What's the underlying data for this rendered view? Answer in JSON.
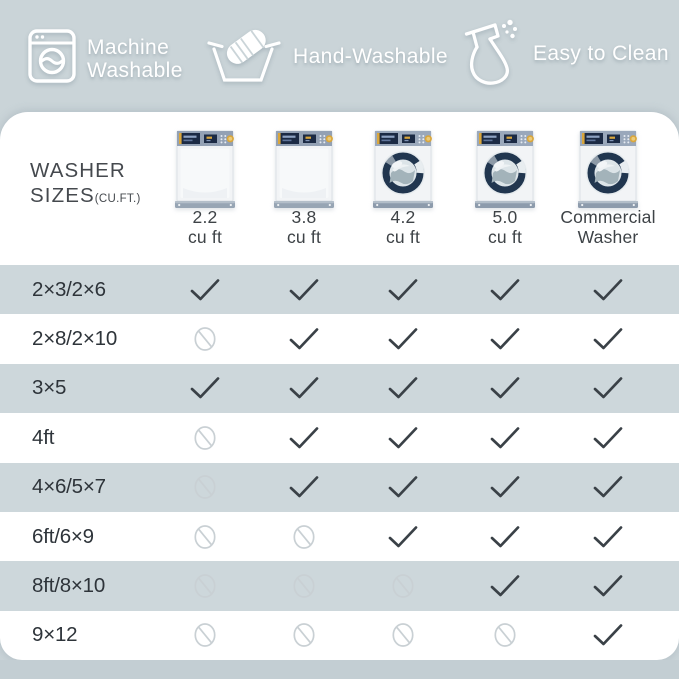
{
  "colors": {
    "page_bg": "#cad4d8",
    "stripe": "#cdd7db",
    "card": "#ffffff",
    "bottom_band": "#c3ced3",
    "check": "#3a4147",
    "deny": "#c9d0d4",
    "badge_text": "#ffffff",
    "label_text": "#2e343a"
  },
  "badges": [
    {
      "icon": "washing-machine-icon",
      "label_lines": [
        "Machine",
        "Washable"
      ]
    },
    {
      "icon": "hand-wash-icon",
      "label_lines": [
        "Hand-Washable"
      ]
    },
    {
      "icon": "spray-bottle-icon",
      "label_lines": [
        "Easy to Clean"
      ]
    }
  ],
  "table": {
    "corner": {
      "title_line1": "WASHER",
      "title_line2": "SIZES",
      "unit": "(CU.FT.)"
    },
    "columns": [
      {
        "label_lines": [
          "2.2",
          "cu ft"
        ],
        "machine": "top-loader"
      },
      {
        "label_lines": [
          "3.8",
          "cu ft"
        ],
        "machine": "top-loader"
      },
      {
        "label_lines": [
          "4.2",
          "cu ft"
        ],
        "machine": "front-loader"
      },
      {
        "label_lines": [
          "5.0",
          "cu ft"
        ],
        "machine": "front-loader"
      },
      {
        "label_lines": [
          "Commercial",
          "Washer"
        ],
        "machine": "front-loader"
      }
    ],
    "rows": [
      {
        "label": "2×3/2×6",
        "cells": [
          "check",
          "check",
          "check",
          "check",
          "check"
        ]
      },
      {
        "label": "2×8/2×10",
        "cells": [
          "deny",
          "check",
          "check",
          "check",
          "check"
        ]
      },
      {
        "label": "3×5",
        "cells": [
          "check",
          "check",
          "check",
          "check",
          "check"
        ]
      },
      {
        "label": "4ft",
        "cells": [
          "deny",
          "check",
          "check",
          "check",
          "check"
        ]
      },
      {
        "label": "4×6/5×7",
        "cells": [
          "deny",
          "check",
          "check",
          "check",
          "check"
        ]
      },
      {
        "label": "6ft/6×9",
        "cells": [
          "deny",
          "deny",
          "check",
          "check",
          "check"
        ]
      },
      {
        "label": "8ft/8×10",
        "cells": [
          "deny",
          "deny",
          "deny",
          "check",
          "check"
        ]
      },
      {
        "label": "9×12",
        "cells": [
          "deny",
          "deny",
          "deny",
          "deny",
          "check"
        ]
      }
    ],
    "cell_symbols": {
      "check": "compatible-check",
      "deny": "not-compatible"
    }
  }
}
